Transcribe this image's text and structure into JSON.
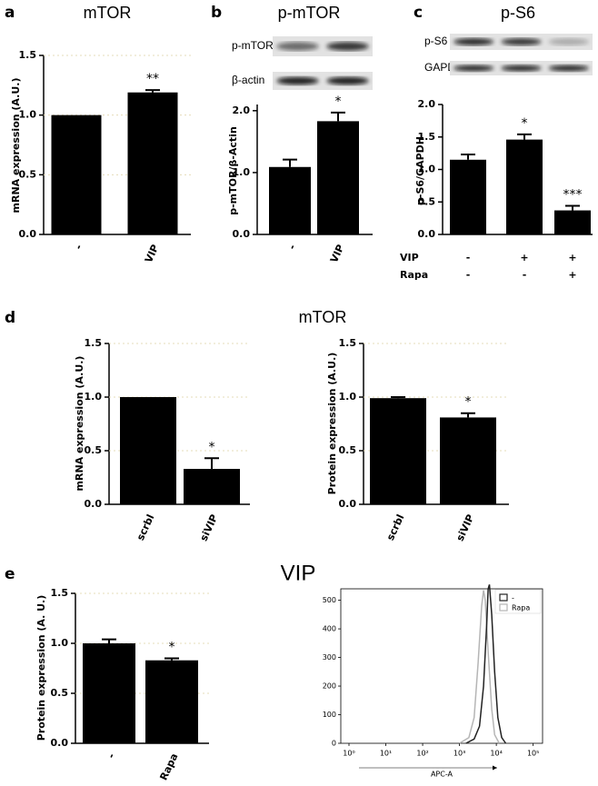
{
  "chart_data": [
    {
      "type": "bar",
      "panel": "a",
      "title": "mTOR",
      "ylabel": "mRNA expression (A.U.)",
      "categories": [
        "-",
        "VIP"
      ],
      "values": [
        1.0,
        1.19
      ],
      "errors": [
        0,
        0.02
      ],
      "annotations": [
        null,
        "**"
      ],
      "ylim": [
        0,
        1.5
      ],
      "yticks": [
        {
          "value": 0,
          "label": "0.0"
        },
        {
          "value": 0.5,
          "label": "0.5"
        },
        {
          "value": 1,
          "label": "1.0"
        },
        {
          "value": 1.5,
          "label": "1.5"
        }
      ],
      "color": "#000000",
      "grid": true
    },
    {
      "type": "bar",
      "panel": "b",
      "title": "p-mTOR",
      "blots": [
        "p-mTOR",
        "β-actin"
      ],
      "ylabel": "p-mTOR/β-Actin",
      "categories": [
        "-",
        "VIP"
      ],
      "values": [
        1.09,
        1.83
      ],
      "errors": [
        0.12,
        0.14
      ],
      "annotations": [
        null,
        "*"
      ],
      "ylim": [
        0,
        2.1
      ],
      "yticks": [
        {
          "value": 0,
          "label": "0.0"
        },
        {
          "value": 1,
          "label": "1.0"
        },
        {
          "value": 2,
          "label": "2.0"
        }
      ],
      "color": "#000000",
      "grid": false
    },
    {
      "type": "bar",
      "panel": "c",
      "title": "p-S6",
      "blots": [
        "p-S6",
        "GAPDH"
      ],
      "ylabel": "p-S6/GAPDH",
      "category_rows": [
        {
          "name": "VIP",
          "labels": [
            "-",
            "+",
            "+"
          ]
        },
        {
          "name": "Rapa",
          "labels": [
            "-",
            "-",
            "+"
          ]
        }
      ],
      "values": [
        1.15,
        1.46,
        0.37
      ],
      "errors": [
        0.08,
        0.08,
        0.07
      ],
      "annotations": [
        null,
        "*",
        "***"
      ],
      "ylim": [
        0,
        2
      ],
      "yticks": [
        {
          "value": 0,
          "label": "0.0"
        },
        {
          "value": 0.5,
          "label": "0.5"
        },
        {
          "value": 1,
          "label": "1.0"
        },
        {
          "value": 1.5,
          "label": "1.5"
        },
        {
          "value": 2,
          "label": "2.0"
        }
      ],
      "color": "#000000",
      "grid": false
    },
    {
      "type": "bar",
      "ylabel": "mRNA expression (A.U.)",
      "categories": [
        "scrbl",
        "siVIP"
      ],
      "values": [
        1.0,
        0.33
      ],
      "errors": [
        0,
        0.1
      ],
      "annotations": [
        null,
        "*"
      ],
      "ylim": [
        0,
        1.5
      ],
      "yticks": [
        {
          "value": 0,
          "label": "0.0"
        },
        {
          "value": 0.5,
          "label": "0.5"
        },
        {
          "value": 1,
          "label": "1.0"
        },
        {
          "value": 1.5,
          "label": "1.5"
        }
      ],
      "color": "#000000",
      "grid": true
    },
    {
      "type": "bar",
      "ylabel": "Protein expression (A.U.)",
      "categories": [
        "scrbl",
        "siVIP"
      ],
      "values": [
        0.99,
        0.81
      ],
      "errors": [
        0.01,
        0.04
      ],
      "annotations": [
        null,
        "*"
      ],
      "ylim": [
        0,
        1.5
      ],
      "yticks": [
        {
          "value": 0,
          "label": "0.0"
        },
        {
          "value": 0.5,
          "label": "0.5"
        },
        {
          "value": 1,
          "label": "1.0"
        },
        {
          "value": 1.5,
          "label": "1.5"
        }
      ],
      "color": "#000000",
      "grid": true
    },
    {
      "type": "bar",
      "ylabel": "Protein expression (A. U.)",
      "categories": [
        "-",
        "Rapa"
      ],
      "values": [
        1.0,
        0.83
      ],
      "errors": [
        0.04,
        0.02
      ],
      "annotations": [
        null,
        "*"
      ],
      "ylim": [
        0,
        1.5
      ],
      "yticks": [
        {
          "value": 0,
          "label": "0.0"
        },
        {
          "value": 0.5,
          "label": "0.5"
        },
        {
          "value": 1,
          "label": "1.0"
        },
        {
          "value": 1.5,
          "label": "1.5"
        }
      ],
      "color": "#000000",
      "grid": true
    },
    {
      "type": "line",
      "xlabel": "APC-A",
      "xlog": true,
      "xlim": [
        0.6,
        180000
      ],
      "xticks": [
        {
          "value": 1,
          "label": "10⁰"
        },
        {
          "value": 10,
          "label": "10¹"
        },
        {
          "value": 100,
          "label": "10²"
        },
        {
          "value": 1000,
          "label": "10³"
        },
        {
          "value": 10000,
          "label": "10⁴"
        },
        {
          "value": 100000,
          "label": "10⁵"
        }
      ],
      "ylim": [
        0,
        540
      ],
      "yticks": [
        0,
        100,
        200,
        300,
        400,
        500
      ],
      "legend": "upper right",
      "series": [
        {
          "name": "-",
          "color": "#222222",
          "x": [
            1500,
            2500,
            3500,
            4500,
            5500,
            6000,
            6500,
            7500,
            9000,
            11000,
            14000,
            18000
          ],
          "values": [
            0,
            15,
            60,
            200,
            420,
            540,
            555,
            450,
            250,
            90,
            20,
            0
          ]
        },
        {
          "name": "Rapa",
          "color": "#b5b5b5",
          "x": [
            1000,
            1800,
            2500,
            3200,
            4000,
            4500,
            5000,
            6000,
            7500,
            9000,
            12000
          ],
          "values": [
            0,
            20,
            90,
            280,
            480,
            535,
            500,
            320,
            120,
            30,
            0
          ]
        }
      ]
    }
  ],
  "sections": [
    {
      "panel": "d",
      "title": "mTOR"
    },
    {
      "panel": "e",
      "title": "VIP"
    }
  ]
}
